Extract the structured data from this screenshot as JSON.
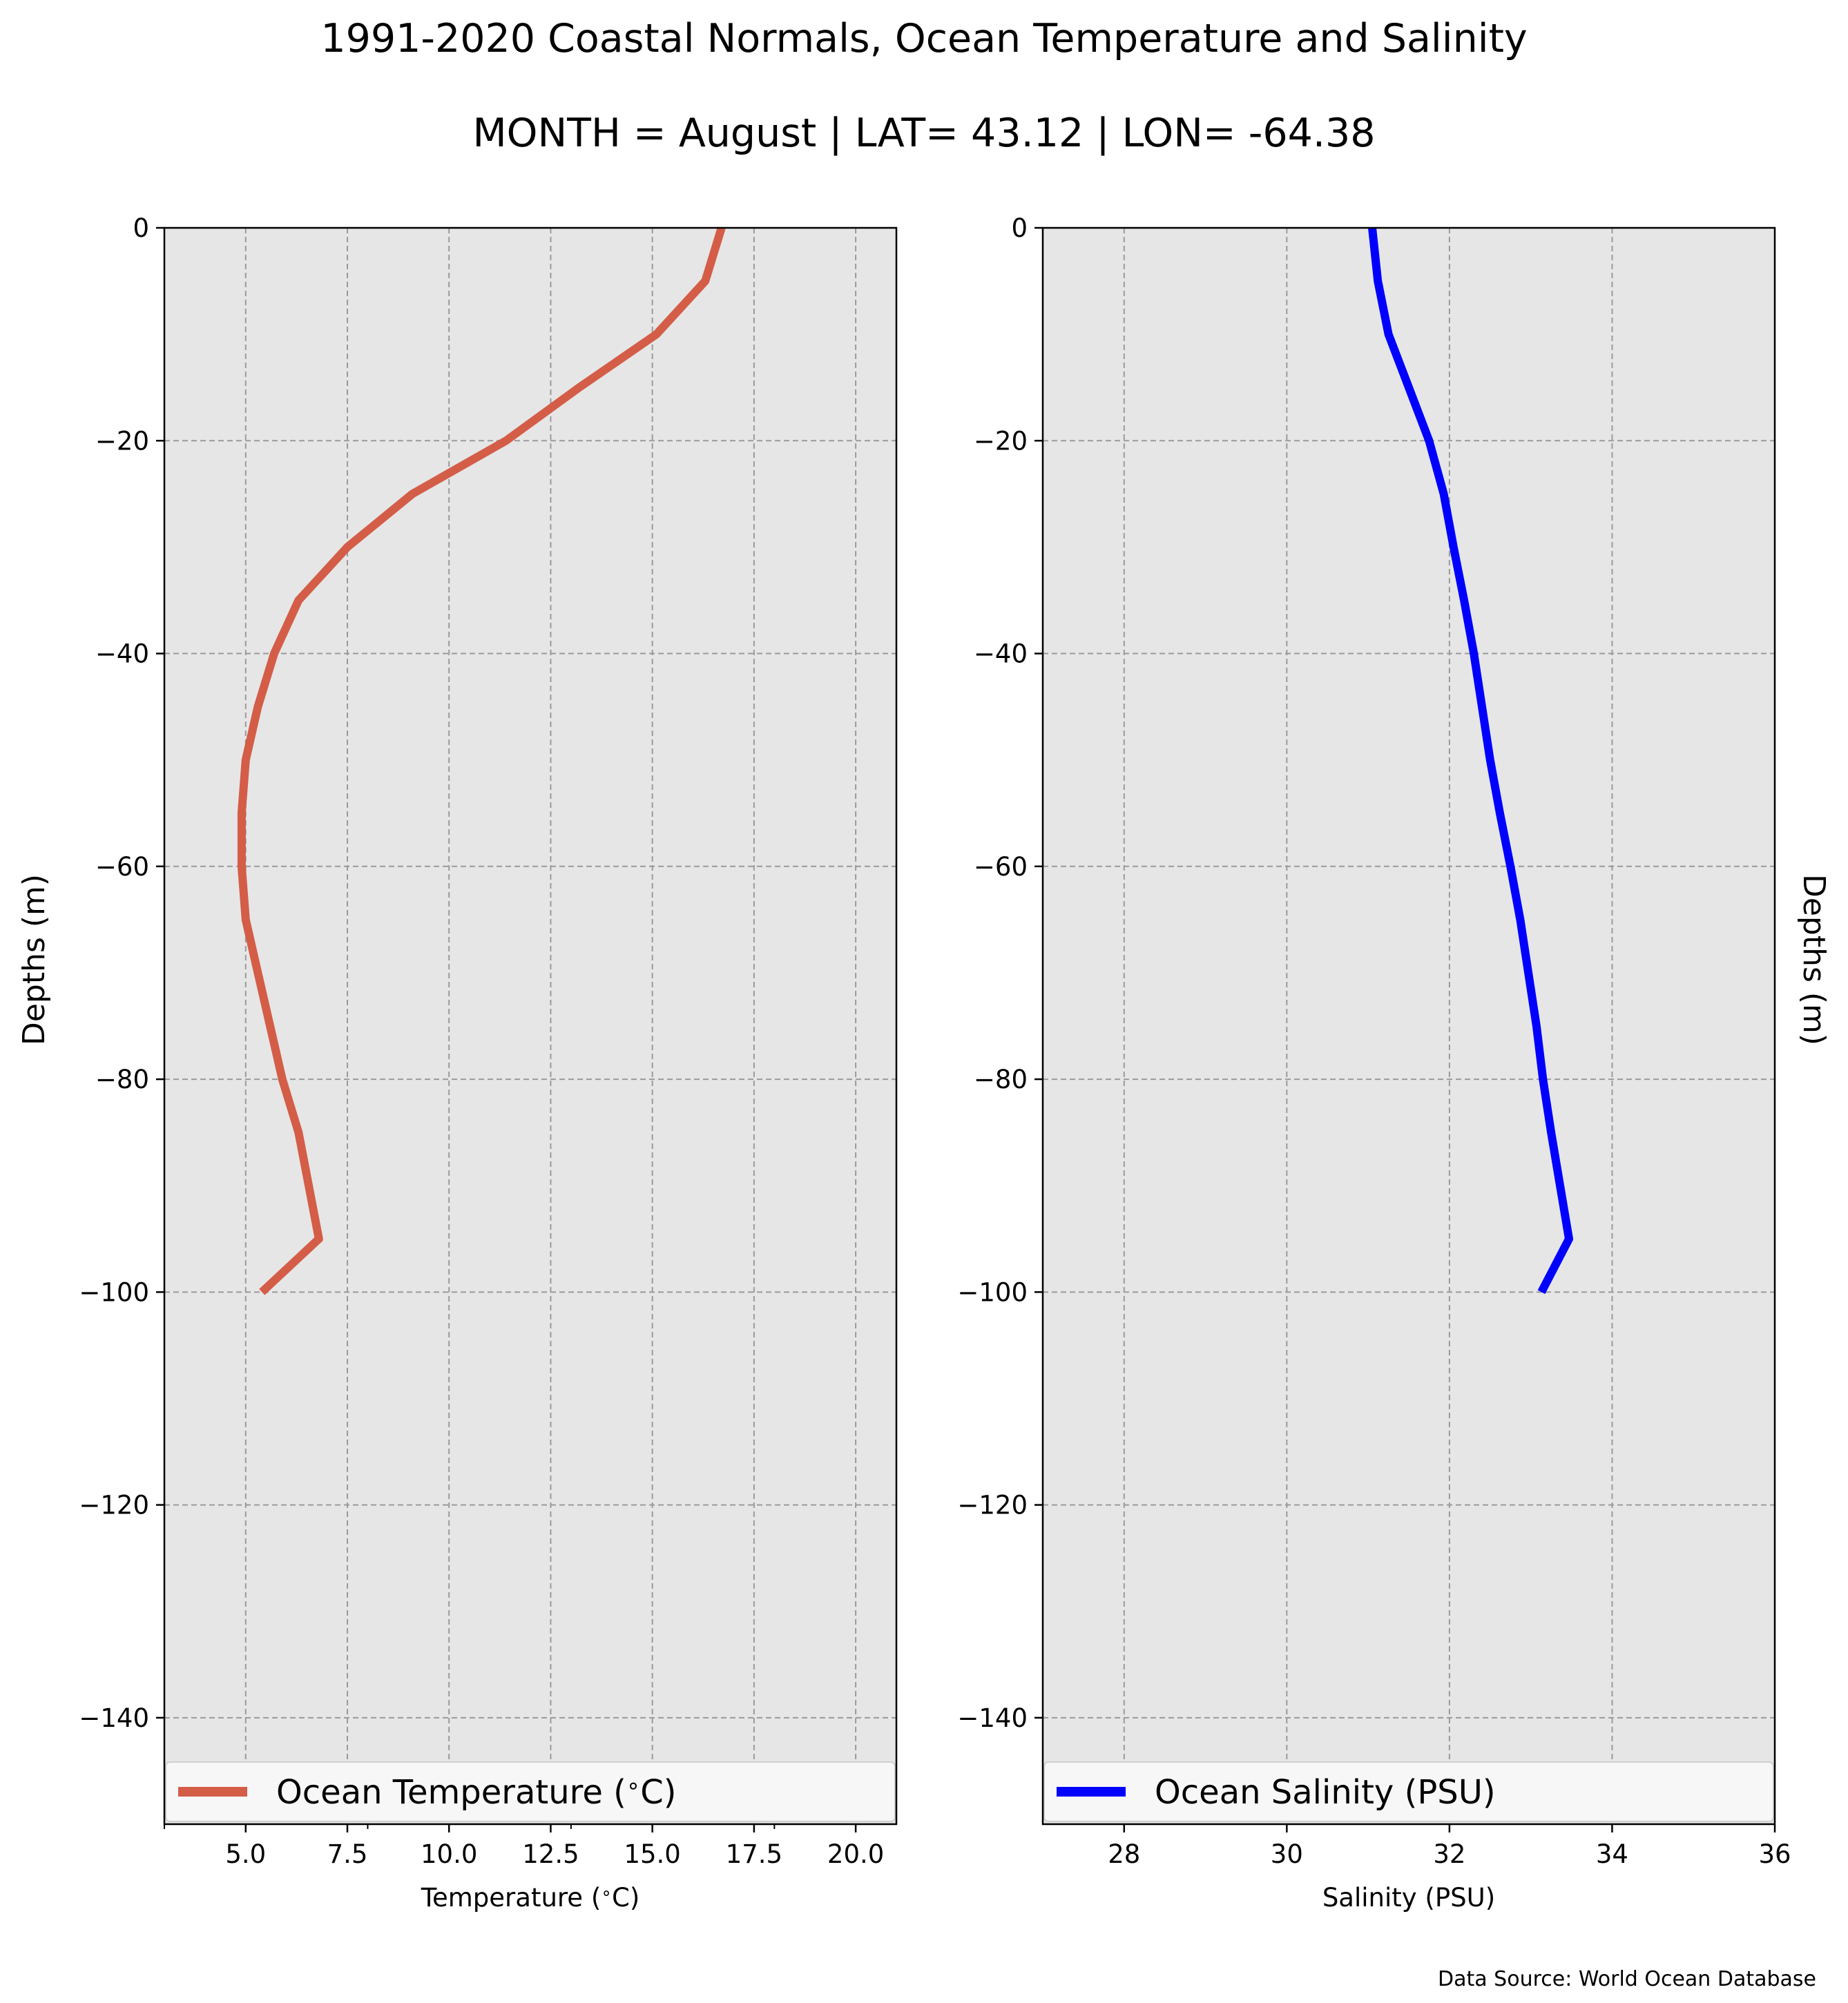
{
  "title": "1991-2020 Coastal Normals, Ocean Temperature and Salinity",
  "subtitle": "MONTH = August | LAT= 43.12 | LON= -64.38",
  "source_note": "Data Source: World Ocean Database",
  "colors": {
    "temperature": "#d45d48",
    "salinity": "#0000ff",
    "plot_bg": "#e6e6e6"
  },
  "chart_data": [
    {
      "type": "line",
      "id": "temperature",
      "xlabel": "Temperature ($^\\circ$C)",
      "ylabel": "Depths (m)",
      "xlim": [
        3.0,
        21.0
      ],
      "ylim": [
        -150,
        0
      ],
      "xticks": [
        5.0,
        7.5,
        10.0,
        12.5,
        15.0,
        17.5,
        20.0
      ],
      "xtick_labels": [
        "5.0",
        "7.5",
        "10.0",
        "12.5",
        "15.0",
        "17.5",
        "20.0"
      ],
      "yticks": [
        0,
        -20,
        -40,
        -60,
        -80,
        -100,
        -120,
        -140
      ],
      "ytick_labels": [
        "0",
        "−20",
        "−40",
        "−60",
        "−80",
        "−100",
        "−120",
        "−140"
      ],
      "grid": true,
      "legend_position": "lower center",
      "series": [
        {
          "name": "Ocean Temperature ($^\\circ$C)",
          "color": "#d45d48",
          "x": [
            16.7,
            16.3,
            15.1,
            13.2,
            11.4,
            9.1,
            7.5,
            6.3,
            5.7,
            5.3,
            5.0,
            4.9,
            4.9,
            5.0,
            5.3,
            5.6,
            5.9,
            6.3,
            6.8,
            5.4
          ],
          "y": [
            0,
            -5,
            -10,
            -15,
            -20,
            -25,
            -30,
            -35,
            -40,
            -45,
            -50,
            -55,
            -60,
            -65,
            -70,
            -75,
            -80,
            -85,
            -95,
            -100
          ]
        }
      ]
    },
    {
      "type": "line",
      "id": "salinity",
      "xlabel": "Salinity (PSU)",
      "ylabel": "Depths (m)",
      "xlim": [
        27,
        36
      ],
      "ylim": [
        -150,
        0
      ],
      "xticks": [
        28,
        30,
        32,
        34,
        36
      ],
      "xtick_labels": [
        "28",
        "30",
        "32",
        "34",
        "36"
      ],
      "yticks": [
        0,
        -20,
        -40,
        -60,
        -80,
        -100,
        -120,
        -140
      ],
      "ytick_labels": [
        "0",
        "−20",
        "−40",
        "−60",
        "−80",
        "−100",
        "−120",
        "−140"
      ],
      "grid": true,
      "legend_position": "lower center",
      "series": [
        {
          "name": "Ocean Salinity (PSU)",
          "color": "#0000ff",
          "x": [
            31.05,
            31.12,
            31.25,
            31.5,
            31.75,
            31.93,
            32.05,
            32.18,
            32.3,
            32.4,
            32.5,
            32.62,
            32.75,
            32.87,
            32.97,
            33.07,
            33.15,
            33.25,
            33.47,
            33.13
          ],
          "y": [
            0,
            -5,
            -10,
            -15,
            -20,
            -25,
            -30,
            -35,
            -40,
            -45,
            -50,
            -55,
            -60,
            -65,
            -70,
            -75,
            -80,
            -85,
            -95,
            -100
          ]
        }
      ]
    }
  ]
}
